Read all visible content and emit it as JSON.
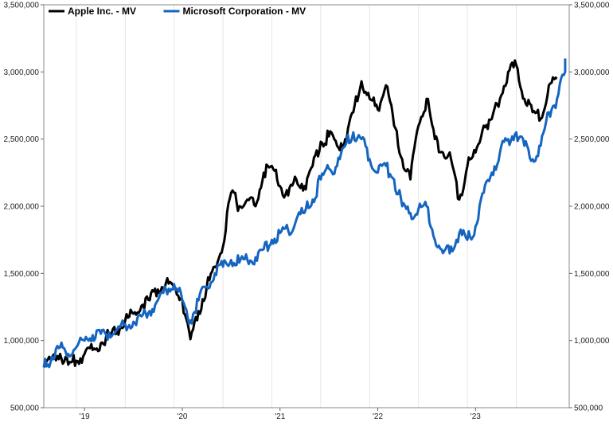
{
  "chart_data": {
    "type": "line",
    "title": "",
    "xlabel": "",
    "ylabel": "",
    "x_tick_labels": [
      "'19",
      "'20",
      "'21",
      "'22",
      "'23"
    ],
    "y_tick_labels_left": [
      "500,000",
      "1,000,000",
      "1,500,000",
      "2,000,000",
      "2,500,000",
      "3,000,000",
      "3,500,000"
    ],
    "y_tick_labels_right": [
      "500,000",
      "1,000,000",
      "1,500,000",
      "2,000,000",
      "2,500,000",
      "3,000,000",
      "3,500,000"
    ],
    "ylim": [
      500000,
      3500000
    ],
    "xlim": [
      "2018-09",
      "2023-12"
    ],
    "grid": "vertical",
    "legend": "top-left",
    "series": [
      {
        "name": "Apple Inc. - MV",
        "color": "#000000",
        "points": [
          [
            "2018-09",
            800000
          ],
          [
            "2018-10",
            860000
          ],
          [
            "2018-11",
            900000
          ],
          [
            "2018-12",
            820000
          ],
          [
            "2019-01",
            850000
          ],
          [
            "2019-02",
            900000
          ],
          [
            "2019-03",
            930000
          ],
          [
            "2019-04",
            980000
          ],
          [
            "2019-05",
            1040000
          ],
          [
            "2019-06",
            1080000
          ],
          [
            "2019-07",
            1150000
          ],
          [
            "2019-08",
            1200000
          ],
          [
            "2019-09",
            1260000
          ],
          [
            "2019-10",
            1300000
          ],
          [
            "2019-11",
            1380000
          ],
          [
            "2019-12",
            1430000
          ],
          [
            "2020-01",
            1400000
          ],
          [
            "2020-02",
            1300000
          ],
          [
            "2020-03",
            1010000
          ],
          [
            "2020-04",
            1220000
          ],
          [
            "2020-05",
            1400000
          ],
          [
            "2020-06",
            1550000
          ],
          [
            "2020-07",
            1700000
          ],
          [
            "2020-08",
            2100000
          ],
          [
            "2020-09",
            2000000
          ],
          [
            "2020-10",
            2050000
          ],
          [
            "2020-11",
            2000000
          ],
          [
            "2020-12",
            2250000
          ],
          [
            "2021-01",
            2300000
          ],
          [
            "2021-02",
            2150000
          ],
          [
            "2021-03",
            2080000
          ],
          [
            "2021-04",
            2200000
          ],
          [
            "2021-05",
            2150000
          ],
          [
            "2021-06",
            2300000
          ],
          [
            "2021-07",
            2480000
          ],
          [
            "2021-08",
            2520000
          ],
          [
            "2021-09",
            2450000
          ],
          [
            "2021-10",
            2500000
          ],
          [
            "2021-11",
            2700000
          ],
          [
            "2021-12",
            2930000
          ],
          [
            "2022-01",
            2800000
          ],
          [
            "2022-02",
            2720000
          ],
          [
            "2022-03",
            2900000
          ],
          [
            "2022-04",
            2600000
          ],
          [
            "2022-05",
            2350000
          ],
          [
            "2022-06",
            2200000
          ],
          [
            "2022-07",
            2600000
          ],
          [
            "2022-08",
            2800000
          ],
          [
            "2022-09",
            2500000
          ],
          [
            "2022-10",
            2400000
          ],
          [
            "2022-11",
            2350000
          ],
          [
            "2022-12",
            2050000
          ],
          [
            "2023-01",
            2300000
          ],
          [
            "2023-02",
            2400000
          ],
          [
            "2023-03",
            2600000
          ],
          [
            "2023-04",
            2650000
          ],
          [
            "2023-05",
            2800000
          ],
          [
            "2023-06",
            3000000
          ],
          [
            "2023-07",
            3050000
          ],
          [
            "2023-08",
            2800000
          ],
          [
            "2023-09",
            2700000
          ],
          [
            "2023-10",
            2650000
          ],
          [
            "2023-11",
            2900000
          ],
          [
            "2023-12",
            2950000
          ]
        ]
      },
      {
        "name": "Microsoft Corporation - MV",
        "color": "#1565c0",
        "points": [
          [
            "2018-09",
            800000
          ],
          [
            "2018-10",
            880000
          ],
          [
            "2018-11",
            950000
          ],
          [
            "2018-12",
            900000
          ],
          [
            "2019-01",
            950000
          ],
          [
            "2019-02",
            1000000
          ],
          [
            "2019-03",
            1040000
          ],
          [
            "2019-04",
            1050000
          ],
          [
            "2019-05",
            1060000
          ],
          [
            "2019-06",
            1080000
          ],
          [
            "2019-07",
            1120000
          ],
          [
            "2019-08",
            1140000
          ],
          [
            "2019-09",
            1180000
          ],
          [
            "2019-10",
            1220000
          ],
          [
            "2019-11",
            1300000
          ],
          [
            "2019-12",
            1380000
          ],
          [
            "2020-01",
            1420000
          ],
          [
            "2020-02",
            1300000
          ],
          [
            "2020-03",
            1150000
          ],
          [
            "2020-04",
            1300000
          ],
          [
            "2020-05",
            1400000
          ],
          [
            "2020-06",
            1500000
          ],
          [
            "2020-07",
            1550000
          ],
          [
            "2020-08",
            1600000
          ],
          [
            "2020-09",
            1580000
          ],
          [
            "2020-10",
            1600000
          ],
          [
            "2020-11",
            1620000
          ],
          [
            "2020-12",
            1680000
          ],
          [
            "2021-01",
            1750000
          ],
          [
            "2021-02",
            1800000
          ],
          [
            "2021-03",
            1820000
          ],
          [
            "2021-04",
            1900000
          ],
          [
            "2021-05",
            1950000
          ],
          [
            "2021-06",
            2050000
          ],
          [
            "2021-07",
            2200000
          ],
          [
            "2021-08",
            2280000
          ],
          [
            "2021-09",
            2300000
          ],
          [
            "2021-10",
            2450000
          ],
          [
            "2021-11",
            2550000
          ],
          [
            "2021-12",
            2500000
          ],
          [
            "2022-01",
            2350000
          ],
          [
            "2022-02",
            2250000
          ],
          [
            "2022-03",
            2300000
          ],
          [
            "2022-04",
            2200000
          ],
          [
            "2022-05",
            2000000
          ],
          [
            "2022-06",
            1950000
          ],
          [
            "2022-07",
            1980000
          ],
          [
            "2022-08",
            2000000
          ],
          [
            "2022-09",
            1750000
          ],
          [
            "2022-10",
            1650000
          ],
          [
            "2022-11",
            1700000
          ],
          [
            "2022-12",
            1800000
          ],
          [
            "2023-01",
            1750000
          ],
          [
            "2023-02",
            1850000
          ],
          [
            "2023-03",
            2100000
          ],
          [
            "2023-04",
            2250000
          ],
          [
            "2023-05",
            2400000
          ],
          [
            "2023-06",
            2500000
          ],
          [
            "2023-07",
            2550000
          ],
          [
            "2023-08",
            2450000
          ],
          [
            "2023-09",
            2350000
          ],
          [
            "2023-10",
            2450000
          ],
          [
            "2023-11",
            2700000
          ],
          [
            "2023-12",
            2800000
          ],
          [
            "2024-01",
            3000000
          ],
          [
            "2024-01",
            3100000
          ]
        ]
      }
    ]
  }
}
